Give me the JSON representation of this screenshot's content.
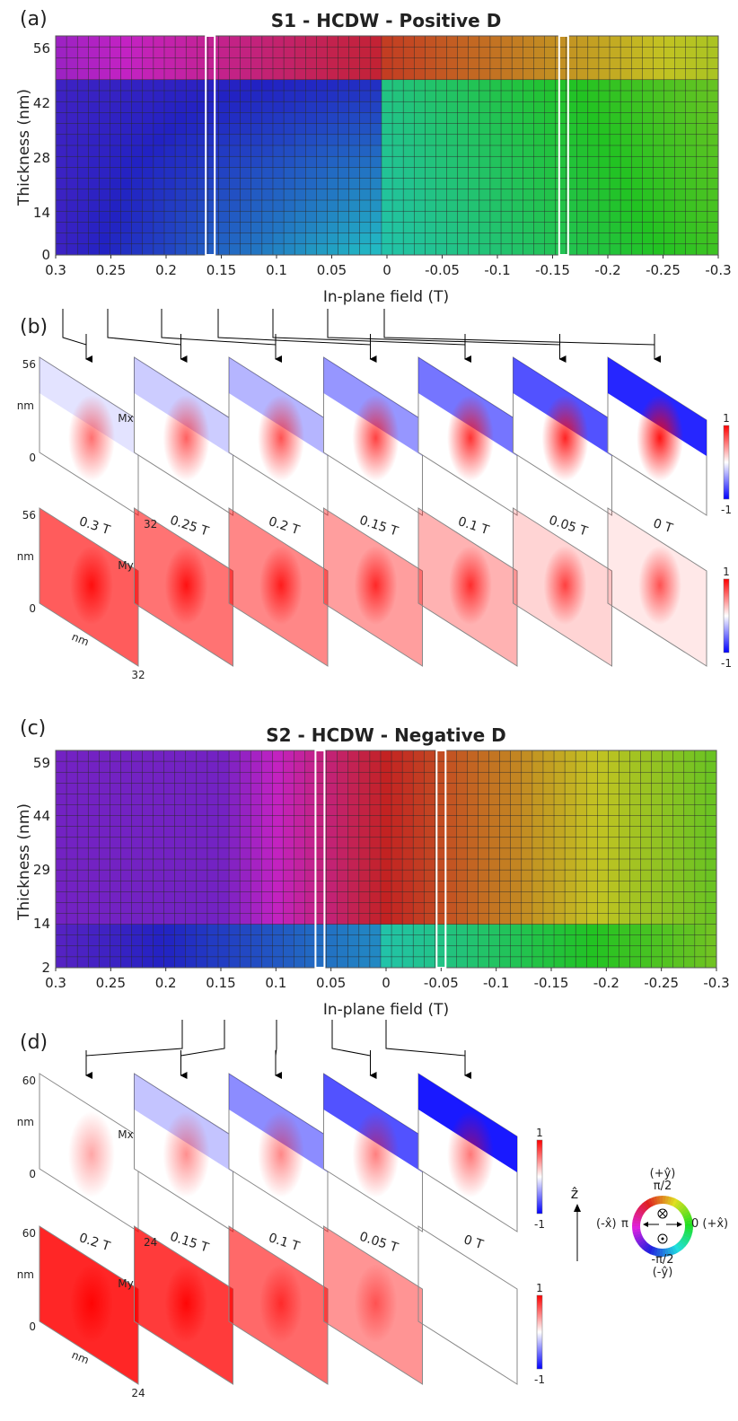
{
  "chart_data": [
    {
      "panel": "(a)",
      "type": "heatmap",
      "title": "S1 - HCDW - Positive D",
      "xlabel": "In-plane field (T)",
      "ylabel": "Thickness (nm)",
      "xticks": [
        "0.3",
        "0.25",
        "0.2",
        "0.15",
        "0.1",
        "0.05",
        "0",
        "-0.05",
        "-0.1",
        "-0.15",
        "-0.2",
        "-0.25",
        "-0.3"
      ],
      "yticks": [
        "56",
        "42",
        "28",
        "14",
        "0"
      ],
      "xlim": [
        0.3,
        -0.3
      ],
      "ylim": [
        0,
        56
      ],
      "highlighted_fields": [
        0.16,
        -0.16
      ],
      "colormap": "in-plane magnetization angle (color wheel)"
    },
    {
      "panel": "(b)",
      "type": "heatmap",
      "field_labels": [
        "0.3 T",
        "0.25 T",
        "0.2 T",
        "0.15 T",
        "0.1 T",
        "0.05 T",
        "0 T"
      ],
      "mx_label": "Mx",
      "my_label": "My",
      "y_tick_top": "56",
      "y_tick_bottom": "0",
      "y_unit": "nm",
      "x_unit": "nm",
      "width_label": "32",
      "colorbar": {
        "max": "1",
        "min": "-1"
      },
      "mx_negative_strength": [
        0.12,
        0.22,
        0.32,
        0.45,
        0.6,
        0.75,
        0.95
      ],
      "my_positive_strength": [
        0.75,
        0.65,
        0.55,
        0.45,
        0.35,
        0.2,
        0.1
      ]
    },
    {
      "panel": "(c)",
      "type": "heatmap",
      "title": "S2 - HCDW - Negative D",
      "xlabel": "In-plane field (T)",
      "ylabel": "Thickness (nm)",
      "xticks": [
        "0.3",
        "0.25",
        "0.2",
        "0.15",
        "0.1",
        "0.05",
        "0",
        "-0.05",
        "-0.1",
        "-0.15",
        "-0.2",
        "-0.25",
        "-0.3"
      ],
      "yticks": [
        "59",
        "44",
        "29",
        "14",
        "2"
      ],
      "xlim": [
        0.3,
        -0.3
      ],
      "ylim": [
        2,
        59
      ],
      "highlighted_fields": [
        0.06,
        -0.05
      ],
      "colormap": "in-plane magnetization angle (color wheel)"
    },
    {
      "panel": "(d)",
      "type": "heatmap",
      "field_labels": [
        "0.2 T",
        "0.15 T",
        "0.1 T",
        "0.05 T",
        "0 T"
      ],
      "mx_label": "Mx",
      "my_label": "My",
      "y_tick_top": "60",
      "y_tick_bottom": "0",
      "y_unit": "nm",
      "x_unit": "nm",
      "width_label": "24",
      "colorbar": {
        "max": "1",
        "min": "-1"
      },
      "mx_negative_strength": [
        0.0,
        0.25,
        0.5,
        0.75,
        1.0
      ],
      "my_positive_strength": [
        1.0,
        0.9,
        0.7,
        0.5,
        0.0
      ]
    }
  ],
  "labels": {
    "a": "(a)",
    "b": "(b)",
    "c": "(c)",
    "d": "(d)",
    "title_a": "S1 - HCDW - Positive D",
    "title_c": "S2 - HCDW - Negative D",
    "ylabel": "Thickness (nm)",
    "xlabel": "In-plane field (T)"
  },
  "legend": {
    "z_axis": "ẑ",
    "top": "(+ŷ)",
    "top_angle": "π/2",
    "right": "0 (+x̂)",
    "left": "(-x̂)",
    "left_angle": "π",
    "bottom_angle": "-π/2",
    "bottom": "(-ŷ)"
  },
  "colors": {
    "positive": "#ff0000",
    "negative": "#0000ff",
    "grid": "#333333",
    "highlight": "#ffffff"
  }
}
